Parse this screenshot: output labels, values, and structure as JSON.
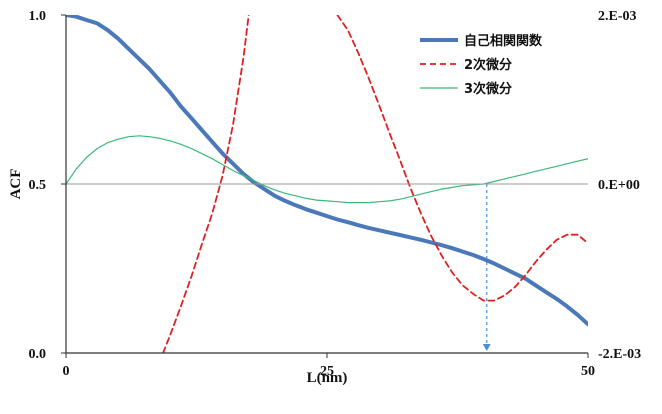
{
  "chart_data": {
    "type": "line",
    "xlabel": "L(nm)",
    "ylabel": "ACF",
    "xlim": [
      0,
      50
    ],
    "ylim": [
      0.0,
      1.0
    ],
    "y2lim": [
      -0.002,
      0.002
    ],
    "x_ticks": [
      "0",
      "25",
      "50"
    ],
    "y_ticks": [
      "0.0",
      "0.5",
      "1.0"
    ],
    "y2_ticks": [
      "-2.E-03",
      "0.E+00",
      "2.E-03"
    ],
    "y2_tick_values": [
      -0.002,
      0.0,
      0.002
    ],
    "legend_position": "top-right",
    "reference_line": {
      "axis": "y2",
      "value": 0.0
    },
    "marker_arrow": {
      "x": 40.3,
      "from_y2": 0.0,
      "to_y2": -0.002
    },
    "series": [
      {
        "name": "自己相関関数",
        "axis": "left",
        "style": "solid-thick",
        "color": "#4a78b8",
        "x": [
          0,
          1,
          2,
          3,
          4,
          5,
          6,
          7,
          8,
          9,
          10,
          11,
          12,
          13,
          14,
          15,
          16,
          17,
          18,
          19,
          20,
          21,
          22,
          23,
          24,
          25,
          26,
          27,
          28,
          29,
          30,
          31,
          32,
          33,
          34,
          35,
          36,
          37,
          38,
          39,
          40,
          41,
          42,
          43,
          44,
          45,
          46,
          47,
          48,
          49,
          50
        ],
        "values": [
          1.0,
          0.995,
          0.985,
          0.975,
          0.955,
          0.93,
          0.9,
          0.87,
          0.84,
          0.805,
          0.77,
          0.73,
          0.695,
          0.66,
          0.625,
          0.59,
          0.56,
          0.53,
          0.505,
          0.485,
          0.465,
          0.45,
          0.437,
          0.425,
          0.415,
          0.405,
          0.395,
          0.387,
          0.378,
          0.37,
          0.363,
          0.356,
          0.349,
          0.342,
          0.335,
          0.327,
          0.319,
          0.31,
          0.3,
          0.29,
          0.278,
          0.265,
          0.25,
          0.235,
          0.22,
          0.2,
          0.18,
          0.16,
          0.138,
          0.113,
          0.085
        ]
      },
      {
        "name": "2次微分",
        "axis": "right",
        "style": "dashed",
        "color": "#e02020",
        "x": [
          9.3,
          10,
          11,
          12,
          13,
          14,
          15,
          16,
          17,
          17.5,
          26,
          27,
          28,
          29,
          30,
          31,
          32,
          33,
          34,
          35,
          36,
          37,
          38,
          39,
          40,
          41,
          42,
          43,
          44,
          45,
          46,
          47,
          48,
          49,
          50
        ],
        "values": [
          -0.002,
          -0.00178,
          -0.00145,
          -0.0011,
          -0.00072,
          -0.00035,
          0.0001,
          0.0007,
          0.0015,
          0.002,
          0.002,
          0.00182,
          0.00155,
          0.00125,
          0.00093,
          0.0006,
          0.00028,
          -5e-05,
          -0.00035,
          -0.00062,
          -0.00085,
          -0.00105,
          -0.0012,
          -0.0013,
          -0.00138,
          -0.00138,
          -0.00132,
          -0.00122,
          -0.00108,
          -0.00092,
          -0.00078,
          -0.00066,
          -0.0006,
          -0.0006,
          -0.0007
        ]
      },
      {
        "name": "3次微分",
        "axis": "right",
        "style": "thin",
        "color": "#3cb878",
        "x": [
          0,
          1,
          2,
          3,
          4,
          5,
          6,
          7,
          8,
          9,
          10,
          11,
          12,
          13,
          14,
          15,
          16,
          17,
          18,
          19,
          20,
          21,
          22,
          23,
          24,
          25,
          26,
          27,
          28,
          29,
          30,
          31,
          32,
          33,
          34,
          35,
          36,
          37,
          38,
          39,
          40,
          41,
          42,
          43,
          44,
          45,
          46,
          47,
          48,
          49,
          50
        ],
        "values": [
          0.0,
          0.00018,
          0.00032,
          0.00042,
          0.00049,
          0.00053,
          0.00056,
          0.00057,
          0.00056,
          0.00054,
          0.00051,
          0.00047,
          0.00042,
          0.00036,
          0.0003,
          0.00023,
          0.00016,
          0.0001,
          4e-05,
          -2e-05,
          -7e-05,
          -0.00011,
          -0.00014,
          -0.00017,
          -0.00019,
          -0.0002,
          -0.00021,
          -0.00022,
          -0.00022,
          -0.00022,
          -0.00021,
          -0.0002,
          -0.00018,
          -0.00015,
          -0.00012,
          -9e-05,
          -6e-05,
          -4e-05,
          -2e-05,
          -1e-05,
          0.0,
          3e-05,
          6e-05,
          9e-05,
          0.00012,
          0.00015,
          0.00018,
          0.00021,
          0.00024,
          0.00027,
          0.0003
        ]
      }
    ]
  }
}
